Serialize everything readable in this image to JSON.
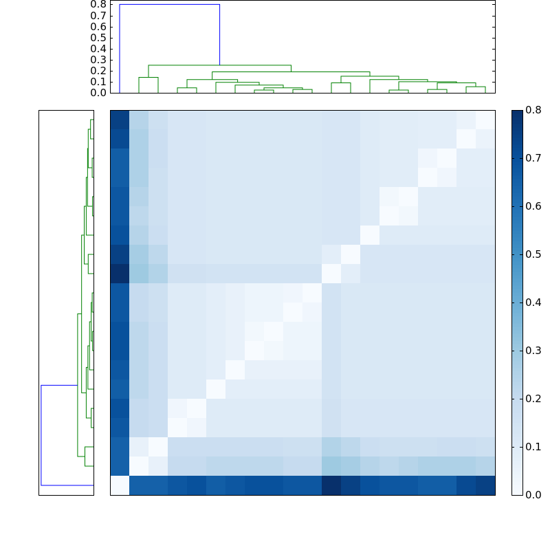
{
  "chart_data": {
    "type": "clustered-heatmap",
    "colormap": [
      "#f7fbff",
      "#deebf7",
      "#c6dbef",
      "#9ecae1",
      "#6baed6",
      "#4292c6",
      "#2171b5",
      "#08519c",
      "#08306b"
    ],
    "clim": [
      0,
      0.8
    ],
    "cticks": [
      {
        "value": 0,
        "label": "0.0"
      },
      {
        "value": 0.1,
        "label": "0.1"
      },
      {
        "value": 0.2,
        "label": "0.2"
      },
      {
        "value": 0.3,
        "label": "0.3"
      },
      {
        "value": 0.4,
        "label": "0.4"
      },
      {
        "value": 0.5,
        "label": "0.5"
      },
      {
        "value": 0.6,
        "label": "0.6"
      },
      {
        "value": 0.7,
        "label": "0.7"
      },
      {
        "value": 0.8,
        "label": "0.8"
      }
    ],
    "values": [
      [
        0.75,
        0.24,
        0.17,
        0.13,
        0.13,
        0.12,
        0.12,
        0.12,
        0.12,
        0.12,
        0.12,
        0.13,
        0.13,
        0.1,
        0.09,
        0.09,
        0.08,
        0.08,
        0.05,
        0
      ],
      [
        0.72,
        0.26,
        0.18,
        0.13,
        0.13,
        0.12,
        0.12,
        0.12,
        0.12,
        0.12,
        0.12,
        0.13,
        0.13,
        0.1,
        0.09,
        0.09,
        0.08,
        0.08,
        0,
        0.05
      ],
      [
        0.66,
        0.26,
        0.18,
        0.13,
        0.13,
        0.12,
        0.12,
        0.12,
        0.12,
        0.12,
        0.12,
        0.13,
        0.13,
        0.1,
        0.09,
        0.09,
        0.03,
        0,
        0.08,
        0.08
      ],
      [
        0.66,
        0.26,
        0.17,
        0.13,
        0.13,
        0.12,
        0.12,
        0.12,
        0.12,
        0.12,
        0.12,
        0.13,
        0.13,
        0.1,
        0.09,
        0.09,
        0,
        0.03,
        0.08,
        0.08
      ],
      [
        0.68,
        0.24,
        0.17,
        0.13,
        0.13,
        0.12,
        0.12,
        0.12,
        0.12,
        0.12,
        0.12,
        0.13,
        0.13,
        0.1,
        0.02,
        0,
        0.09,
        0.09,
        0.09,
        0.09
      ],
      [
        0.68,
        0.22,
        0.17,
        0.13,
        0.13,
        0.12,
        0.12,
        0.12,
        0.12,
        0.12,
        0.12,
        0.13,
        0.13,
        0.1,
        0,
        0.02,
        0.09,
        0.09,
        0.09,
        0.09
      ],
      [
        0.7,
        0.24,
        0.18,
        0.13,
        0.13,
        0.12,
        0.12,
        0.12,
        0.12,
        0.12,
        0.12,
        0.13,
        0.13,
        0,
        0.1,
        0.1,
        0.1,
        0.1,
        0.1,
        0.1
      ],
      [
        0.75,
        0.28,
        0.22,
        0.13,
        0.13,
        0.12,
        0.12,
        0.12,
        0.12,
        0.12,
        0.12,
        0.08,
        0,
        0.13,
        0.13,
        0.13,
        0.13,
        0.13,
        0.13,
        0.13
      ],
      [
        0.8,
        0.3,
        0.25,
        0.16,
        0.16,
        0.15,
        0.15,
        0.15,
        0.15,
        0.15,
        0.15,
        0,
        0.08,
        0.13,
        0.13,
        0.13,
        0.13,
        0.13,
        0.13,
        0.13
      ],
      [
        0.68,
        0.2,
        0.17,
        0.1,
        0.1,
        0.08,
        0.06,
        0.04,
        0.04,
        0.03,
        0,
        0.15,
        0.12,
        0.12,
        0.12,
        0.12,
        0.12,
        0.12,
        0.12,
        0.12
      ],
      [
        0.68,
        0.2,
        0.17,
        0.1,
        0.1,
        0.08,
        0.06,
        0.04,
        0.04,
        0,
        0.03,
        0.15,
        0.12,
        0.12,
        0.12,
        0.12,
        0.12,
        0.12,
        0.12,
        0.12
      ],
      [
        0.7,
        0.22,
        0.18,
        0.1,
        0.1,
        0.08,
        0.06,
        0.02,
        0,
        0.04,
        0.04,
        0.15,
        0.12,
        0.12,
        0.12,
        0.12,
        0.12,
        0.12,
        0.12,
        0.12
      ],
      [
        0.7,
        0.22,
        0.18,
        0.1,
        0.1,
        0.08,
        0.06,
        0,
        0.02,
        0.04,
        0.04,
        0.15,
        0.12,
        0.12,
        0.12,
        0.12,
        0.12,
        0.12,
        0.12,
        0.12
      ],
      [
        0.68,
        0.22,
        0.18,
        0.1,
        0.1,
        0.08,
        0,
        0.06,
        0.06,
        0.06,
        0.06,
        0.15,
        0.12,
        0.12,
        0.12,
        0.12,
        0.12,
        0.12,
        0.12,
        0.12
      ],
      [
        0.66,
        0.22,
        0.18,
        0.1,
        0.1,
        0,
        0.08,
        0.08,
        0.08,
        0.08,
        0.08,
        0.15,
        0.12,
        0.12,
        0.12,
        0.12,
        0.12,
        0.12,
        0.12,
        0.12
      ],
      [
        0.7,
        0.2,
        0.18,
        0.03,
        0,
        0.1,
        0.1,
        0.1,
        0.1,
        0.1,
        0.1,
        0.16,
        0.13,
        0.13,
        0.13,
        0.13,
        0.13,
        0.13,
        0.13,
        0.13
      ],
      [
        0.68,
        0.2,
        0.18,
        0,
        0.03,
        0.1,
        0.1,
        0.1,
        0.1,
        0.1,
        0.1,
        0.16,
        0.13,
        0.13,
        0.13,
        0.13,
        0.13,
        0.13,
        0.13,
        0.13
      ],
      [
        0.65,
        0.06,
        0,
        0.18,
        0.18,
        0.18,
        0.18,
        0.18,
        0.18,
        0.17,
        0.17,
        0.25,
        0.22,
        0.18,
        0.17,
        0.17,
        0.17,
        0.18,
        0.18,
        0.17
      ],
      [
        0.65,
        0,
        0.06,
        0.2,
        0.2,
        0.22,
        0.22,
        0.22,
        0.22,
        0.2,
        0.2,
        0.3,
        0.28,
        0.24,
        0.22,
        0.24,
        0.26,
        0.26,
        0.26,
        0.24
      ],
      [
        0,
        0.65,
        0.65,
        0.68,
        0.7,
        0.66,
        0.68,
        0.7,
        0.7,
        0.68,
        0.68,
        0.8,
        0.75,
        0.7,
        0.68,
        0.68,
        0.66,
        0.66,
        0.72,
        0.75
      ]
    ],
    "dendrogram": {
      "ylim": [
        0,
        0.84
      ],
      "yticks": [
        {
          "value": 0,
          "label": "0.0"
        },
        {
          "value": 0.1,
          "label": "0.1"
        },
        {
          "value": 0.2,
          "label": "0.2"
        },
        {
          "value": 0.3,
          "label": "0.3"
        },
        {
          "value": 0.4,
          "label": "0.4"
        },
        {
          "value": 0.5,
          "label": "0.5"
        },
        {
          "value": 0.6,
          "label": "0.6"
        },
        {
          "value": 0.7,
          "label": "0.7"
        },
        {
          "value": 0.8,
          "label": "0.8"
        }
      ],
      "links": [
        {
          "x": [
            1,
            1,
            2,
            2
          ],
          "y": [
            0,
            0.14,
            0.14,
            0
          ],
          "color": "#008000"
        },
        {
          "x": [
            3,
            3,
            4,
            4
          ],
          "y": [
            0,
            0.045,
            0.045,
            0
          ],
          "color": "#008000"
        },
        {
          "x": [
            7,
            7,
            8,
            8
          ],
          "y": [
            0,
            0.025,
            0.025,
            0
          ],
          "color": "#008000"
        },
        {
          "x": [
            9,
            9,
            10,
            10
          ],
          "y": [
            0,
            0.03,
            0.03,
            0
          ],
          "color": "#008000"
        },
        {
          "x": [
            7.5,
            7.5,
            9.5,
            9.5
          ],
          "y": [
            0.025,
            0.045,
            0.045,
            0.03
          ],
          "color": "#008000"
        },
        {
          "x": [
            6,
            6,
            8.5,
            8.5
          ],
          "y": [
            0,
            0.07,
            0.07,
            0.045
          ],
          "color": "#008000"
        },
        {
          "x": [
            5,
            5,
            7.25,
            7.25
          ],
          "y": [
            0,
            0.095,
            0.095,
            0.07
          ],
          "color": "#008000"
        },
        {
          "x": [
            3.5,
            3.5,
            6.13,
            6.13
          ],
          "y": [
            0.045,
            0.12,
            0.12,
            0.095
          ],
          "color": "#008000"
        },
        {
          "x": [
            11,
            11,
            12,
            12
          ],
          "y": [
            0,
            0.09,
            0.09,
            0
          ],
          "color": "#008000"
        },
        {
          "x": [
            14,
            14,
            15,
            15
          ],
          "y": [
            0,
            0.025,
            0.025,
            0
          ],
          "color": "#008000"
        },
        {
          "x": [
            16,
            16,
            17,
            17
          ],
          "y": [
            0,
            0.03,
            0.03,
            0
          ],
          "color": "#008000"
        },
        {
          "x": [
            18,
            18,
            19,
            19
          ],
          "y": [
            0,
            0.055,
            0.055,
            0
          ],
          "color": "#008000"
        },
        {
          "x": [
            16.5,
            16.5,
            18.5,
            18.5
          ],
          "y": [
            0.03,
            0.09,
            0.09,
            0.055
          ],
          "color": "#008000"
        },
        {
          "x": [
            14.5,
            14.5,
            17.5,
            17.5
          ],
          "y": [
            0.025,
            0.1,
            0.1,
            0.09
          ],
          "color": "#008000"
        },
        {
          "x": [
            13,
            13,
            16,
            16
          ],
          "y": [
            0,
            0.12,
            0.12,
            0.1
          ],
          "color": "#008000"
        },
        {
          "x": [
            11.5,
            11.5,
            14.5,
            14.5
          ],
          "y": [
            0.09,
            0.15,
            0.15,
            0.12
          ],
          "color": "#008000"
        },
        {
          "x": [
            4.81,
            4.81,
            13,
            13
          ],
          "y": [
            0.12,
            0.19,
            0.19,
            0.15
          ],
          "color": "#008000"
        },
        {
          "x": [
            1.5,
            1.5,
            8.91,
            8.91
          ],
          "y": [
            0.14,
            0.25,
            0.25,
            0.19
          ],
          "color": "#008000"
        },
        {
          "x": [
            0,
            0,
            5.2,
            5.2
          ],
          "y": [
            0,
            0.8,
            0.8,
            0.25
          ],
          "color": "#0000ff"
        }
      ]
    }
  }
}
